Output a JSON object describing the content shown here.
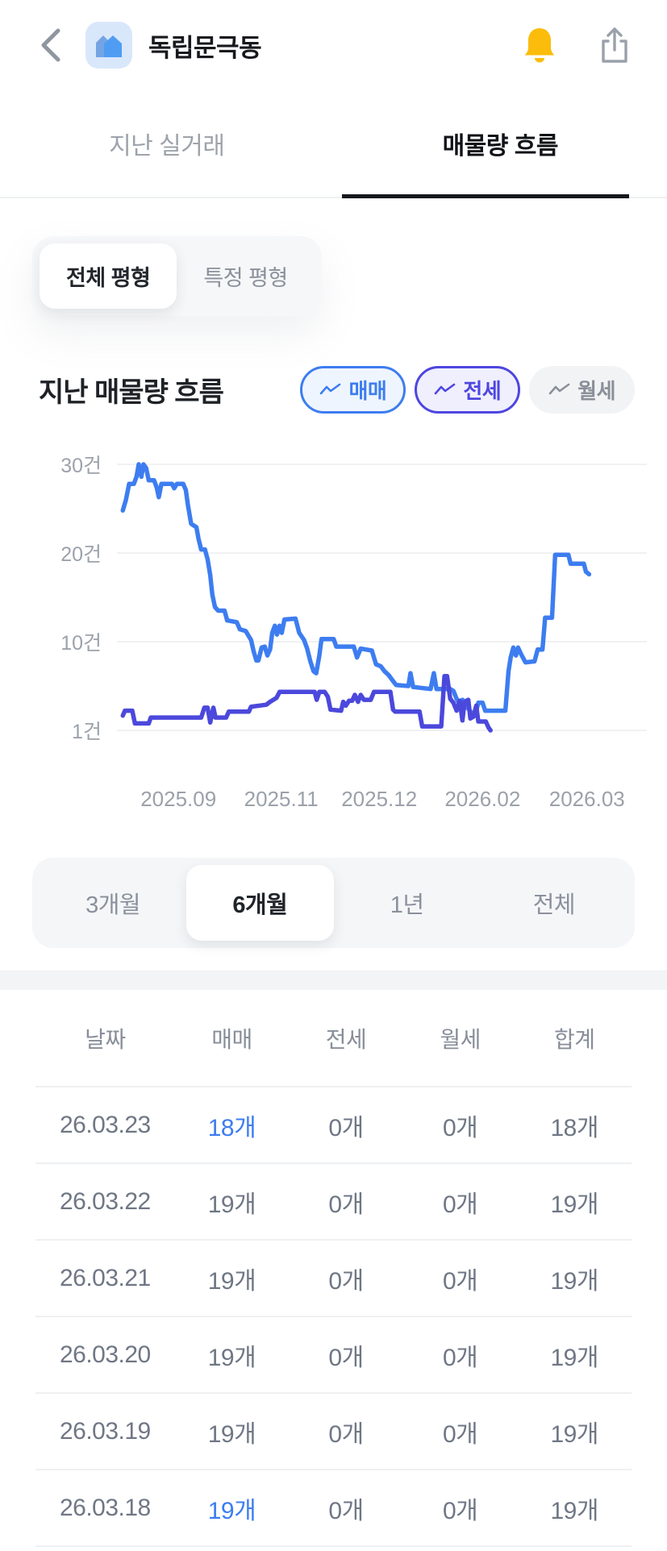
{
  "header": {
    "title": "독립문극동"
  },
  "tabs": [
    {
      "label": "지난 실거래",
      "active": false
    },
    {
      "label": "매물량 흐름",
      "active": true
    }
  ],
  "size_filter": [
    {
      "label": "전체 평형",
      "active": true
    },
    {
      "label": "특정 평형",
      "active": false
    }
  ],
  "section": {
    "title": "지난 매물량 흐름"
  },
  "legend": [
    {
      "label": "매매",
      "color": "#3D7DF0"
    },
    {
      "label": "전세",
      "color": "#4E46E0"
    },
    {
      "label": "월세",
      "color": "#8A9099"
    }
  ],
  "chart_data": {
    "type": "line",
    "title": "지난 매물량 흐름",
    "unit_suffix": "건",
    "grid": "horizontal",
    "legend_position": "top-right",
    "y_axis": {
      "tick_labels": [
        "30건",
        "20건",
        "10건",
        "1건"
      ],
      "tick_values": [
        30,
        20,
        10,
        1
      ]
    },
    "x_axis": {
      "ticks": [
        {
          "label": "2025.09",
          "f": 0.116
        },
        {
          "label": "2025.11",
          "f": 0.31
        },
        {
          "label": "2025.12",
          "f": 0.495
        },
        {
          "label": "2026.02",
          "f": 0.69
        },
        {
          "label": "2026.03",
          "f": 0.887
        }
      ]
    },
    "series": [
      {
        "name": "매매",
        "color": "#3D7DF0",
        "points": [
          [
            0.011,
            24.8
          ],
          [
            0.017,
            26.0
          ],
          [
            0.023,
            27.8
          ],
          [
            0.032,
            27.8
          ],
          [
            0.037,
            28.6
          ],
          [
            0.041,
            30.0
          ],
          [
            0.046,
            28.6
          ],
          [
            0.05,
            30.0
          ],
          [
            0.055,
            29.6
          ],
          [
            0.06,
            28.2
          ],
          [
            0.07,
            28.2
          ],
          [
            0.075,
            27.4
          ],
          [
            0.079,
            26.3
          ],
          [
            0.084,
            27.8
          ],
          [
            0.104,
            27.8
          ],
          [
            0.108,
            27.3
          ],
          [
            0.113,
            27.8
          ],
          [
            0.125,
            27.8
          ],
          [
            0.13,
            27.1
          ],
          [
            0.134,
            25.4
          ],
          [
            0.14,
            23.3
          ],
          [
            0.15,
            22.9
          ],
          [
            0.154,
            21.6
          ],
          [
            0.159,
            20.4
          ],
          [
            0.166,
            20.4
          ],
          [
            0.171,
            19.3
          ],
          [
            0.176,
            17.5
          ],
          [
            0.18,
            15.3
          ],
          [
            0.185,
            13.9
          ],
          [
            0.191,
            13.5
          ],
          [
            0.203,
            13.5
          ],
          [
            0.208,
            12.4
          ],
          [
            0.226,
            12.2
          ],
          [
            0.232,
            11.4
          ],
          [
            0.243,
            11.2
          ],
          [
            0.249,
            10.6
          ],
          [
            0.253,
            10.2
          ],
          [
            0.258,
            9.0
          ],
          [
            0.263,
            8.1
          ],
          [
            0.267,
            8.1
          ],
          [
            0.273,
            9.4
          ],
          [
            0.279,
            9.5
          ],
          [
            0.284,
            8.6
          ],
          [
            0.289,
            9.2
          ],
          [
            0.293,
            11.0
          ],
          [
            0.298,
            11.8
          ],
          [
            0.302,
            10.8
          ],
          [
            0.307,
            11.8
          ],
          [
            0.311,
            11.0
          ],
          [
            0.316,
            12.5
          ],
          [
            0.337,
            12.6
          ],
          [
            0.344,
            11.0
          ],
          [
            0.353,
            10.2
          ],
          [
            0.359,
            9.3
          ],
          [
            0.365,
            8.0
          ],
          [
            0.371,
            7.0
          ],
          [
            0.376,
            6.8
          ],
          [
            0.382,
            8.6
          ],
          [
            0.386,
            10.3
          ],
          [
            0.409,
            10.3
          ],
          [
            0.414,
            9.5
          ],
          [
            0.447,
            9.5
          ],
          [
            0.453,
            8.4
          ],
          [
            0.46,
            9.3
          ],
          [
            0.481,
            9.1
          ],
          [
            0.489,
            7.7
          ],
          [
            0.498,
            7.5
          ],
          [
            0.505,
            7.0
          ],
          [
            0.513,
            6.6
          ],
          [
            0.521,
            6.0
          ],
          [
            0.527,
            5.6
          ],
          [
            0.55,
            5.5
          ],
          [
            0.554,
            6.8
          ],
          [
            0.559,
            5.4
          ],
          [
            0.592,
            5.2
          ],
          [
            0.598,
            6.8
          ],
          [
            0.603,
            5.2
          ],
          [
            0.629,
            5.2
          ],
          [
            0.635,
            5.0
          ],
          [
            0.641,
            4.2
          ],
          [
            0.647,
            3.6
          ],
          [
            0.652,
            4.1
          ],
          [
            0.66,
            3.4
          ],
          [
            0.669,
            2.8
          ],
          [
            0.676,
            2.6
          ],
          [
            0.682,
            3.8
          ],
          [
            0.69,
            3.8
          ],
          [
            0.695,
            3.0
          ],
          [
            0.733,
            3.0
          ],
          [
            0.739,
            7.0
          ],
          [
            0.743,
            8.4
          ],
          [
            0.748,
            9.4
          ],
          [
            0.753,
            8.6
          ],
          [
            0.757,
            9.4
          ],
          [
            0.763,
            8.7
          ],
          [
            0.771,
            7.9
          ],
          [
            0.788,
            8.0
          ],
          [
            0.794,
            9.2
          ],
          [
            0.803,
            9.2
          ],
          [
            0.808,
            12.7
          ],
          [
            0.821,
            12.7
          ],
          [
            0.827,
            19.8
          ],
          [
            0.852,
            19.8
          ],
          [
            0.856,
            18.8
          ],
          [
            0.881,
            18.8
          ],
          [
            0.885,
            17.9
          ],
          [
            0.891,
            17.6
          ]
        ]
      },
      {
        "name": "전세",
        "color": "#4B48DC",
        "points": [
          [
            0.011,
            2.5
          ],
          [
            0.015,
            3.0
          ],
          [
            0.029,
            3.0
          ],
          [
            0.034,
            1.7
          ],
          [
            0.06,
            1.7
          ],
          [
            0.064,
            2.3
          ],
          [
            0.159,
            2.3
          ],
          [
            0.165,
            3.3
          ],
          [
            0.171,
            3.3
          ],
          [
            0.176,
            1.8
          ],
          [
            0.182,
            3.3
          ],
          [
            0.186,
            2.3
          ],
          [
            0.206,
            2.3
          ],
          [
            0.211,
            2.9
          ],
          [
            0.249,
            2.9
          ],
          [
            0.253,
            3.4
          ],
          [
            0.282,
            3.6
          ],
          [
            0.289,
            3.9
          ],
          [
            0.301,
            4.3
          ],
          [
            0.307,
            4.9
          ],
          [
            0.373,
            4.9
          ],
          [
            0.377,
            4.1
          ],
          [
            0.382,
            4.9
          ],
          [
            0.392,
            4.9
          ],
          [
            0.398,
            4.4
          ],
          [
            0.403,
            3.1
          ],
          [
            0.423,
            3.0
          ],
          [
            0.427,
            3.9
          ],
          [
            0.432,
            3.5
          ],
          [
            0.438,
            4.0
          ],
          [
            0.444,
            4.0
          ],
          [
            0.449,
            4.6
          ],
          [
            0.455,
            3.9
          ],
          [
            0.46,
            4.6
          ],
          [
            0.466,
            4.1
          ],
          [
            0.479,
            4.1
          ],
          [
            0.485,
            4.9
          ],
          [
            0.516,
            4.9
          ],
          [
            0.521,
            3.1
          ],
          [
            0.525,
            2.9
          ],
          [
            0.571,
            2.9
          ],
          [
            0.576,
            1.4
          ],
          [
            0.612,
            1.4
          ],
          [
            0.618,
            6.5
          ],
          [
            0.623,
            6.5
          ],
          [
            0.629,
            4.2
          ],
          [
            0.635,
            3.8
          ],
          [
            0.641,
            3.0
          ],
          [
            0.647,
            4.0
          ],
          [
            0.652,
            2.0
          ],
          [
            0.656,
            3.9
          ],
          [
            0.663,
            4.1
          ],
          [
            0.667,
            2.2
          ],
          [
            0.673,
            2.4
          ],
          [
            0.678,
            3.5
          ],
          [
            0.682,
            1.9
          ],
          [
            0.696,
            1.9
          ],
          [
            0.701,
            1.3
          ],
          [
            0.705,
            1.0
          ]
        ]
      },
      {
        "name": "월세",
        "color": "#9CA3AC",
        "points": []
      }
    ]
  },
  "period_options": [
    {
      "label": "3개월",
      "active": false
    },
    {
      "label": "6개월",
      "active": true
    },
    {
      "label": "1년",
      "active": false
    },
    {
      "label": "전체",
      "active": false
    }
  ],
  "table": {
    "headers": [
      "날짜",
      "매매",
      "전세",
      "월세",
      "합계"
    ],
    "rows": [
      {
        "date": "26.03.23",
        "sale": "18개",
        "jeonse": "0개",
        "monthly": "0개",
        "total": "18개",
        "sale_highlighted": true
      },
      {
        "date": "26.03.22",
        "sale": "19개",
        "jeonse": "0개",
        "monthly": "0개",
        "total": "19개",
        "sale_highlighted": false
      },
      {
        "date": "26.03.21",
        "sale": "19개",
        "jeonse": "0개",
        "monthly": "0개",
        "total": "19개",
        "sale_highlighted": false
      },
      {
        "date": "26.03.20",
        "sale": "19개",
        "jeonse": "0개",
        "monthly": "0개",
        "total": "19개",
        "sale_highlighted": false
      },
      {
        "date": "26.03.19",
        "sale": "19개",
        "jeonse": "0개",
        "monthly": "0개",
        "total": "19개",
        "sale_highlighted": false
      },
      {
        "date": "26.03.18",
        "sale": "19개",
        "jeonse": "0개",
        "monthly": "0개",
        "total": "19개",
        "sale_highlighted": true
      }
    ]
  },
  "colors": {
    "accent_sale": "#3D7DF0",
    "accent_jeonse": "#4B48DC",
    "monthly_gray": "#8A9099",
    "bell_yellow": "#FBBC0C",
    "icon_gray": "#9AA1AA",
    "divider": "#EEF0F2",
    "house_badge_bg": "#D9E7FB"
  }
}
